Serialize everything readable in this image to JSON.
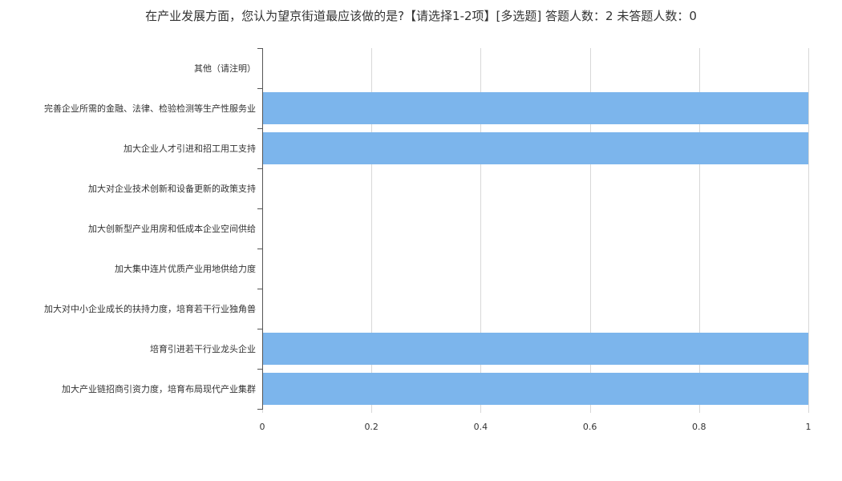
{
  "chart_data": {
    "type": "bar",
    "orientation": "horizontal",
    "title": "在产业发展方面，您认为望京街道最应该做的是?【请选择1-2项】[多选题]  答题人数：2  未答题人数：0",
    "categories": [
      "其他（请注明）",
      "完善企业所需的金融、法律、检验检测等生产性服务业",
      "加大企业人才引进和招工用工支持",
      "加大对企业技术创新和设备更新的政策支持",
      "加大创新型产业用房和低成本企业空间供给",
      "加大集中连片优质产业用地供给力度",
      "加大对中小企业成长的扶持力度，培育若干行业独角兽",
      "培育引进若干行业龙头企业",
      "加大产业链招商引资力度，培育布局现代产业集群"
    ],
    "values": [
      0,
      1,
      1,
      0,
      0,
      0,
      0,
      1,
      1
    ],
    "xlim": [
      0,
      1
    ],
    "xticks": [
      "0",
      "0.2",
      "0.4",
      "0.6",
      "0.8",
      "1"
    ],
    "grid": true,
    "legend": "none",
    "bar_color": "#7cb5ec"
  }
}
